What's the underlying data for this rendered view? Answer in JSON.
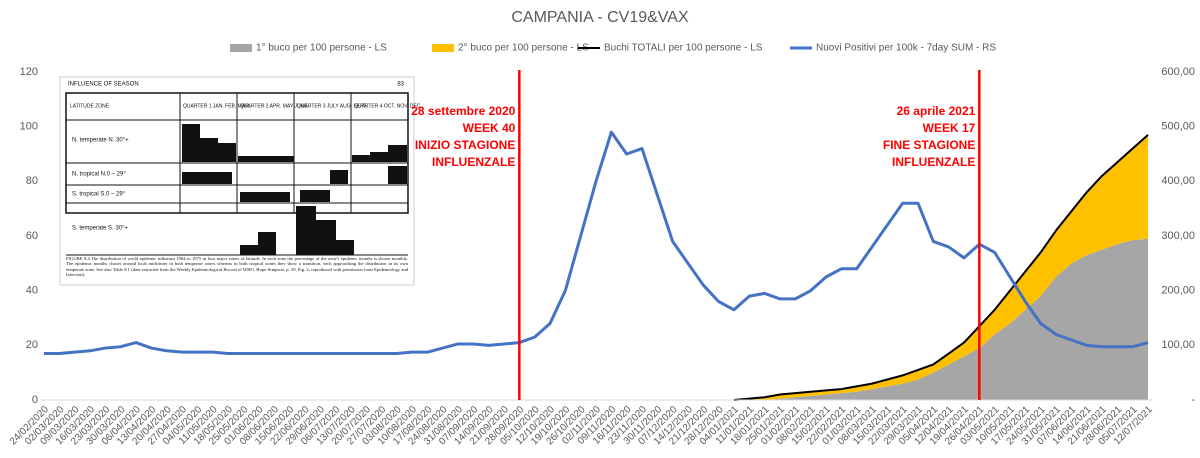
{
  "chart_data": {
    "type": "area",
    "title": "CAMPANIA - CV19&VAX",
    "categories": [
      "24/02/2020",
      "02/03/2020",
      "09/03/2020",
      "16/03/2020",
      "23/03/2020",
      "30/03/2020",
      "06/04/2020",
      "13/04/2020",
      "20/04/2020",
      "27/04/2020",
      "04/05/2020",
      "11/05/2020",
      "18/05/2020",
      "25/05/2020",
      "01/06/2020",
      "08/06/2020",
      "15/06/2020",
      "22/06/2020",
      "29/06/2020",
      "06/07/2020",
      "13/07/2020",
      "20/07/2020",
      "27/07/2020",
      "03/08/2020",
      "10/08/2020",
      "17/08/2020",
      "24/08/2020",
      "31/08/2020",
      "07/09/2020",
      "14/09/2020",
      "21/09/2020",
      "28/09/2020",
      "05/10/2020",
      "12/10/2020",
      "19/10/2020",
      "26/10/2020",
      "02/11/2020",
      "09/11/2020",
      "16/11/2020",
      "23/11/2020",
      "30/11/2020",
      "07/12/2020",
      "14/12/2020",
      "21/12/2020",
      "28/12/2020",
      "04/01/2021",
      "11/01/2021",
      "18/01/2021",
      "25/01/2021",
      "01/02/2021",
      "08/02/2021",
      "15/02/2021",
      "22/02/2021",
      "01/03/2021",
      "08/03/2021",
      "15/03/2021",
      "22/03/2021",
      "29/03/2021",
      "05/04/2021",
      "12/04/2021",
      "19/04/2021",
      "26/04/2021",
      "03/05/2021",
      "10/05/2021",
      "17/05/2021",
      "24/05/2021",
      "31/05/2021",
      "07/06/2021",
      "14/06/2021",
      "21/06/2021",
      "28/06/2021",
      "05/07/2021",
      "12/07/2021"
    ],
    "series": [
      {
        "name": "1° buco per 100 persone - LS",
        "type": "area",
        "color": "#a6a6a6",
        "values": [
          null,
          null,
          null,
          null,
          null,
          null,
          null,
          null,
          null,
          null,
          null,
          null,
          null,
          null,
          null,
          null,
          null,
          null,
          null,
          null,
          null,
          null,
          null,
          null,
          null,
          null,
          null,
          null,
          null,
          null,
          null,
          null,
          null,
          null,
          null,
          null,
          null,
          null,
          null,
          null,
          null,
          null,
          null,
          null,
          null,
          0,
          0,
          0,
          0.5,
          1,
          1.5,
          2,
          2.5,
          3,
          4,
          5,
          6,
          7.5,
          10,
          13,
          16,
          19,
          24,
          28,
          33,
          38,
          45,
          50,
          53,
          55,
          57,
          58.5,
          59
        ]
      },
      {
        "name": "2° buco per 100 persone - LS",
        "type": "area",
        "color": "#ffc000",
        "values": [
          null,
          null,
          null,
          null,
          null,
          null,
          null,
          null,
          null,
          null,
          null,
          null,
          null,
          null,
          null,
          null,
          null,
          null,
          null,
          null,
          null,
          null,
          null,
          null,
          null,
          null,
          null,
          null,
          null,
          null,
          null,
          null,
          null,
          null,
          null,
          null,
          null,
          null,
          null,
          null,
          null,
          null,
          null,
          null,
          null,
          0,
          0.5,
          1,
          1.5,
          1.5,
          1.5,
          1.5,
          1.5,
          2,
          2,
          2.5,
          3,
          3.5,
          3,
          4,
          5,
          8,
          9,
          12,
          14,
          16,
          17,
          19,
          23,
          27,
          30,
          33.5,
          38
        ]
      },
      {
        "name": "Buchi TOTALI per 100 persone - LS",
        "type": "line",
        "color": "#000000",
        "width": 2,
        "values": [
          null,
          null,
          null,
          null,
          null,
          null,
          null,
          null,
          null,
          null,
          null,
          null,
          null,
          null,
          null,
          null,
          null,
          null,
          null,
          null,
          null,
          null,
          null,
          null,
          null,
          null,
          null,
          null,
          null,
          null,
          null,
          null,
          null,
          null,
          null,
          null,
          null,
          null,
          null,
          null,
          null,
          null,
          null,
          null,
          null,
          0,
          0.5,
          1,
          2,
          2.5,
          3,
          3.5,
          4,
          5,
          6,
          7.5,
          9,
          11,
          13,
          17,
          21,
          27,
          33,
          40,
          47,
          54,
          62,
          69,
          76,
          82,
          87,
          92,
          97
        ]
      },
      {
        "name": "Nuovi Positivi per 100k - 7day SUM - RS",
        "type": "line",
        "axis": "y2",
        "color": "#4472c4",
        "width": 3,
        "values": [
          85,
          85,
          87.5,
          90,
          95,
          97.5,
          105,
          95,
          90,
          87.5,
          87.5,
          87.5,
          85,
          85,
          85,
          85,
          85,
          85,
          85,
          85,
          85,
          85,
          85,
          85,
          87.5,
          87.5,
          95,
          102.5,
          102.5,
          100,
          102.5,
          105,
          115,
          140,
          200,
          300,
          400,
          490,
          450,
          460,
          375,
          290,
          250,
          210,
          180,
          165,
          190,
          195,
          185,
          185,
          200,
          225,
          240,
          240,
          280,
          320,
          360,
          360,
          290,
          280,
          260,
          285,
          270,
          225,
          180,
          140,
          120,
          110,
          100,
          97.5,
          97.5,
          97.5,
          105
        ]
      }
    ],
    "ylim": [
      0,
      120
    ],
    "yticks": [
      0,
      20,
      40,
      60,
      80,
      100,
      120
    ],
    "y2lim": [
      0,
      600
    ],
    "y2ticks": [
      {
        "value": 0,
        "label": "-"
      },
      {
        "value": 100,
        "label": "100,00"
      },
      {
        "value": 200,
        "label": "200,00"
      },
      {
        "value": 300,
        "label": "300,00"
      },
      {
        "value": 400,
        "label": "400,00"
      },
      {
        "value": 500,
        "label": "500,00"
      },
      {
        "value": 600,
        "label": "600,00"
      }
    ],
    "legend": "top",
    "annotations": [
      {
        "x": "28/09/2020",
        "color": "#ff0000",
        "lines": [
          "28 settembre 2020",
          "WEEK 40",
          "INIZIO STAGIONE",
          "INFLUENZALE"
        ]
      },
      {
        "x": "26/04/2021",
        "color": "#ff0000",
        "lines": [
          "26 aprile 2021",
          "WEEK 17",
          "FINE STAGIONE",
          "INFLUENZALE"
        ]
      }
    ]
  },
  "inset": {
    "header": "INFLUENCE OF SEASON",
    "page": "83",
    "columns": [
      "LATITUDE ZONE",
      "QUARTER 1 JAN. FEB. MAR.",
      "QUARTER 2 APR. MAY JUNE",
      "QUARTER 3 JULY AUG. SEPT.",
      "QUARTER 4 OCT. NOV. DEC."
    ],
    "zones": [
      "N. temperate N. 30°+",
      "N. tropical N.0 – 29°",
      "S. tropical S.0 – 29°",
      "S. temperate S. 30°+"
    ],
    "caption": "FIGURE 8.4 The distribution of world epidemic influenza 1964 to 1975 in four major zones of latitude. In each zone the percentage of the zone's epidemic months is shown monthly. The epidemic months cluster around local midwinter in both temperate zones whereas in both tropical zones they show a transition, each approaching the distribution in its own temperate zone. See also Table 8.1 (data extracted from the Weekly Epidemiological Record of WHO, Hope-Simpson, p. 39, Fig. 2; reproduced with permission from Epidemiology and Infection)."
  }
}
